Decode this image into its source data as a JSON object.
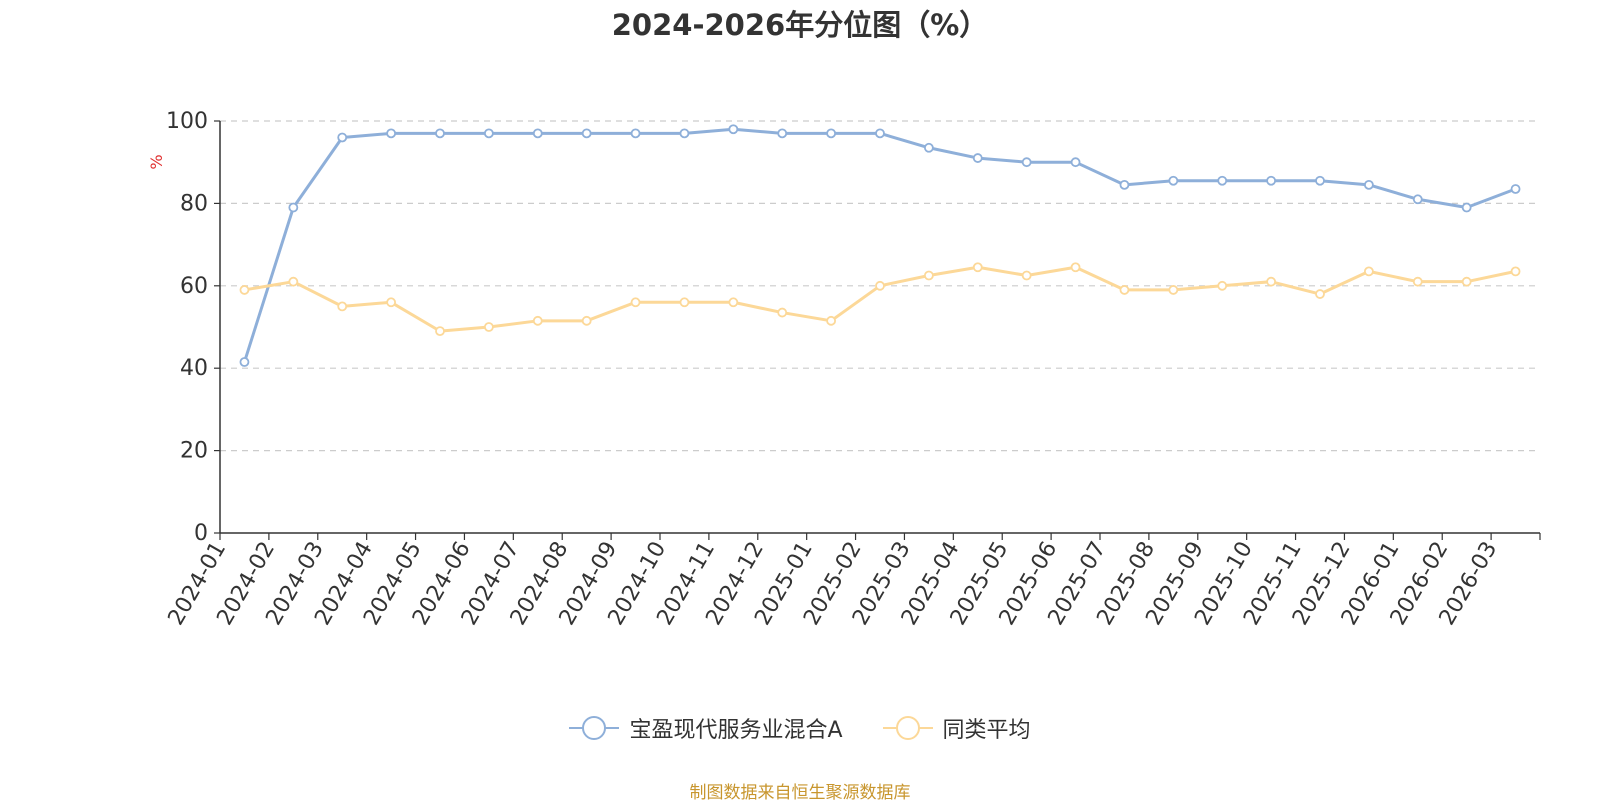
{
  "source_note": "制图数据来自恒生聚源数据库",
  "chart_data": {
    "type": "line",
    "title": "2024-2026年分位图（%）",
    "ylabel": "%",
    "xlabel": "",
    "ylim": [
      0,
      100
    ],
    "yticks": [
      0,
      20,
      40,
      60,
      80,
      100
    ],
    "grid": true,
    "legend_position": "bottom",
    "categories": [
      "2024-01",
      "2024-02",
      "2024-03",
      "2024-04",
      "2024-05",
      "2024-06",
      "2024-07",
      "2024-08",
      "2024-09",
      "2024-10",
      "2024-11",
      "2024-12",
      "2025-01",
      "2025-02",
      "2025-03",
      "2025-04",
      "2025-05",
      "2025-06",
      "2025-07",
      "2025-08",
      "2025-09",
      "2025-10",
      "2025-11",
      "2025-12",
      "2026-01",
      "2026-02",
      "2026-03"
    ],
    "series": [
      {
        "name": "宝盈现代服务业混合A",
        "color": "#8eafd9",
        "values": [
          41.5,
          79,
          96,
          97,
          97,
          97,
          97,
          97,
          97,
          97,
          98,
          97,
          97,
          97,
          93.5,
          91,
          90,
          90,
          84.5,
          85.5,
          85.5,
          85.5,
          85.5,
          84.5,
          81,
          79,
          83.5
        ]
      },
      {
        "name": "同类平均",
        "color": "#fcd898",
        "values": [
          59,
          61,
          55,
          56,
          49,
          50,
          51.5,
          51.5,
          56,
          56,
          56,
          53.5,
          51.5,
          60,
          62.5,
          64.5,
          62.5,
          64.5,
          59,
          59,
          60,
          61,
          58,
          63.5,
          61,
          61,
          63.5
        ]
      }
    ]
  }
}
